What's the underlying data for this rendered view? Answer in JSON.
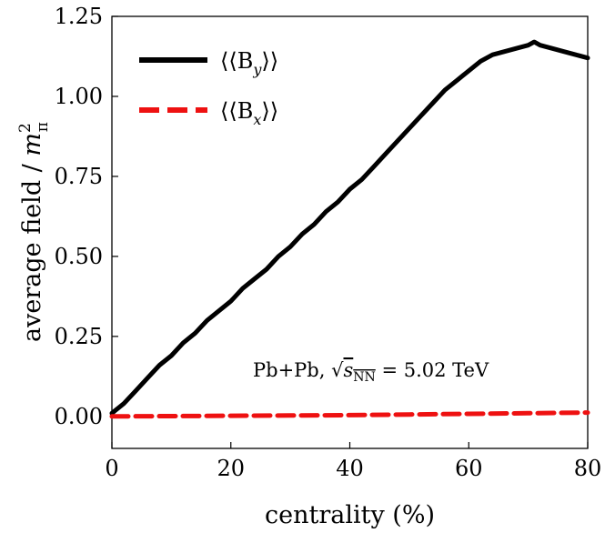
{
  "chart_data": {
    "type": "line",
    "title": "",
    "xlabel": "centrality (%)",
    "ylabel": "average field / m²π",
    "ylabel_main": "average field / ",
    "ylabel_sym": "m",
    "ylabel_sup": "2",
    "ylabel_sub": "π",
    "xlim": [
      0,
      80
    ],
    "ylim": [
      -0.1,
      1.25
    ],
    "xticks": [
      0,
      20,
      40,
      60,
      80
    ],
    "xtick_labels": [
      "0",
      "20",
      "40",
      "60",
      "80"
    ],
    "yticks": [
      0.0,
      0.25,
      0.5,
      0.75,
      1.0,
      1.25
    ],
    "ytick_labels": [
      "0.00",
      "0.25",
      "0.50",
      "0.75",
      "1.00",
      "1.25"
    ],
    "grid": false,
    "legend_position": "top-left",
    "annotation": "Pb+Pb, √sNN = 5.02 TeV",
    "annotation_parts": {
      "pre": "Pb+Pb, ",
      "s": "s",
      "sub": "NN",
      "post": " = 5.02 TeV"
    },
    "series": [
      {
        "name": "⟨⟨By⟩⟩",
        "legend": {
          "pre": "⟨⟨B",
          "sub": "y",
          "post": "⟩⟩"
        },
        "color": "#000000",
        "style": "solid",
        "x": [
          0,
          2,
          4,
          6,
          8,
          10,
          12,
          14,
          16,
          18,
          20,
          22,
          24,
          26,
          28,
          30,
          32,
          34,
          36,
          38,
          40,
          42,
          44,
          46,
          48,
          50,
          52,
          54,
          56,
          58,
          60,
          62,
          64,
          66,
          68,
          70,
          71,
          72,
          74,
          76,
          78,
          80
        ],
        "values": [
          0.01,
          0.04,
          0.08,
          0.12,
          0.16,
          0.19,
          0.23,
          0.26,
          0.3,
          0.33,
          0.36,
          0.4,
          0.43,
          0.46,
          0.5,
          0.53,
          0.57,
          0.6,
          0.64,
          0.67,
          0.71,
          0.74,
          0.78,
          0.82,
          0.86,
          0.9,
          0.94,
          0.98,
          1.02,
          1.05,
          1.08,
          1.11,
          1.13,
          1.14,
          1.15,
          1.16,
          1.17,
          1.16,
          1.15,
          1.14,
          1.13,
          1.12
        ]
      },
      {
        "name": "⟨⟨Bx⟩⟩",
        "legend": {
          "pre": "⟨⟨B",
          "sub": "x",
          "post": "⟩⟩"
        },
        "color": "#ee1111",
        "style": "dashed",
        "x": [
          0,
          10,
          20,
          30,
          40,
          50,
          60,
          70,
          80
        ],
        "values": [
          0.0,
          0.001,
          0.002,
          0.003,
          0.004,
          0.006,
          0.008,
          0.01,
          0.012
        ]
      }
    ]
  }
}
